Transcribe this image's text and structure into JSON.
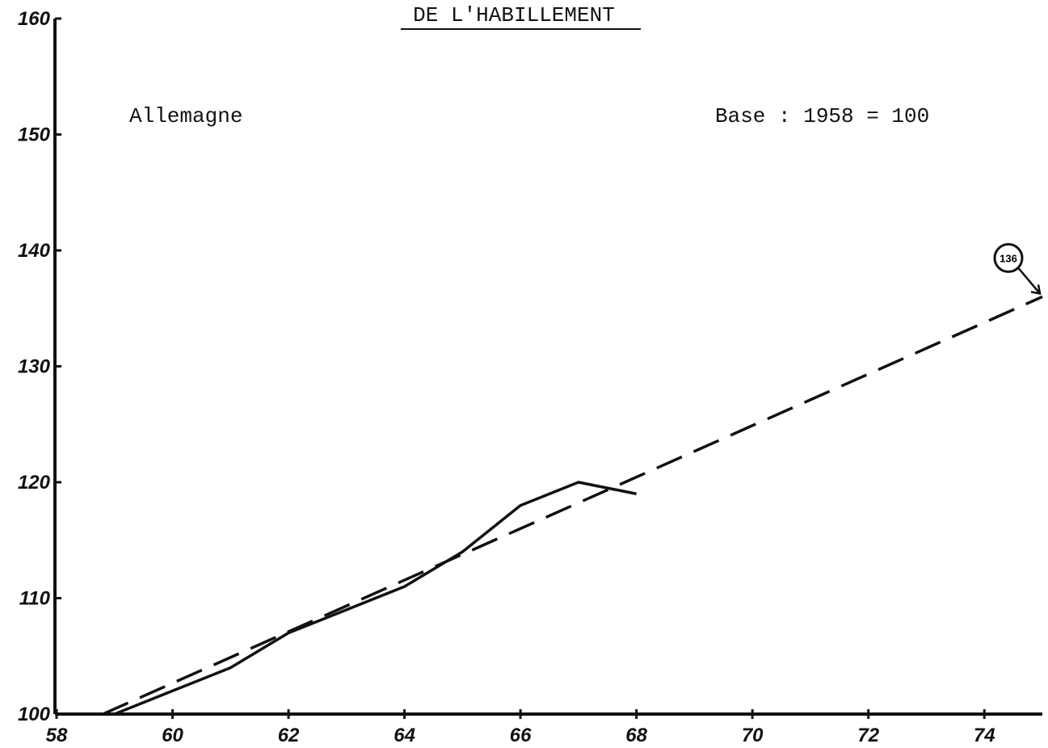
{
  "chart_data": {
    "type": "line",
    "title": "DE L'HABILLEMENT",
    "annotations": [
      "Allemagne",
      "Base : 1958 = 100",
      "136"
    ],
    "series": [
      {
        "color": "#111111",
        "dash": false,
        "x": [
          59,
          60,
          61,
          62,
          63,
          64,
          65,
          66,
          67,
          68
        ],
        "values": [
          100,
          102,
          104,
          107,
          109,
          111,
          114,
          118,
          120,
          119
        ]
      },
      {
        "color": "#111111",
        "dash": true,
        "x": [
          58.8,
          75
        ],
        "values": [
          100,
          136
        ]
      }
    ],
    "xlim": [
      58,
      75
    ],
    "xticks": [
      58,
      60,
      62,
      64,
      66,
      68,
      70,
      72,
      74
    ],
    "ylim": [
      100,
      160
    ],
    "yticks": [
      100,
      110,
      120,
      130,
      140,
      150,
      160
    ],
    "grid": false
  }
}
